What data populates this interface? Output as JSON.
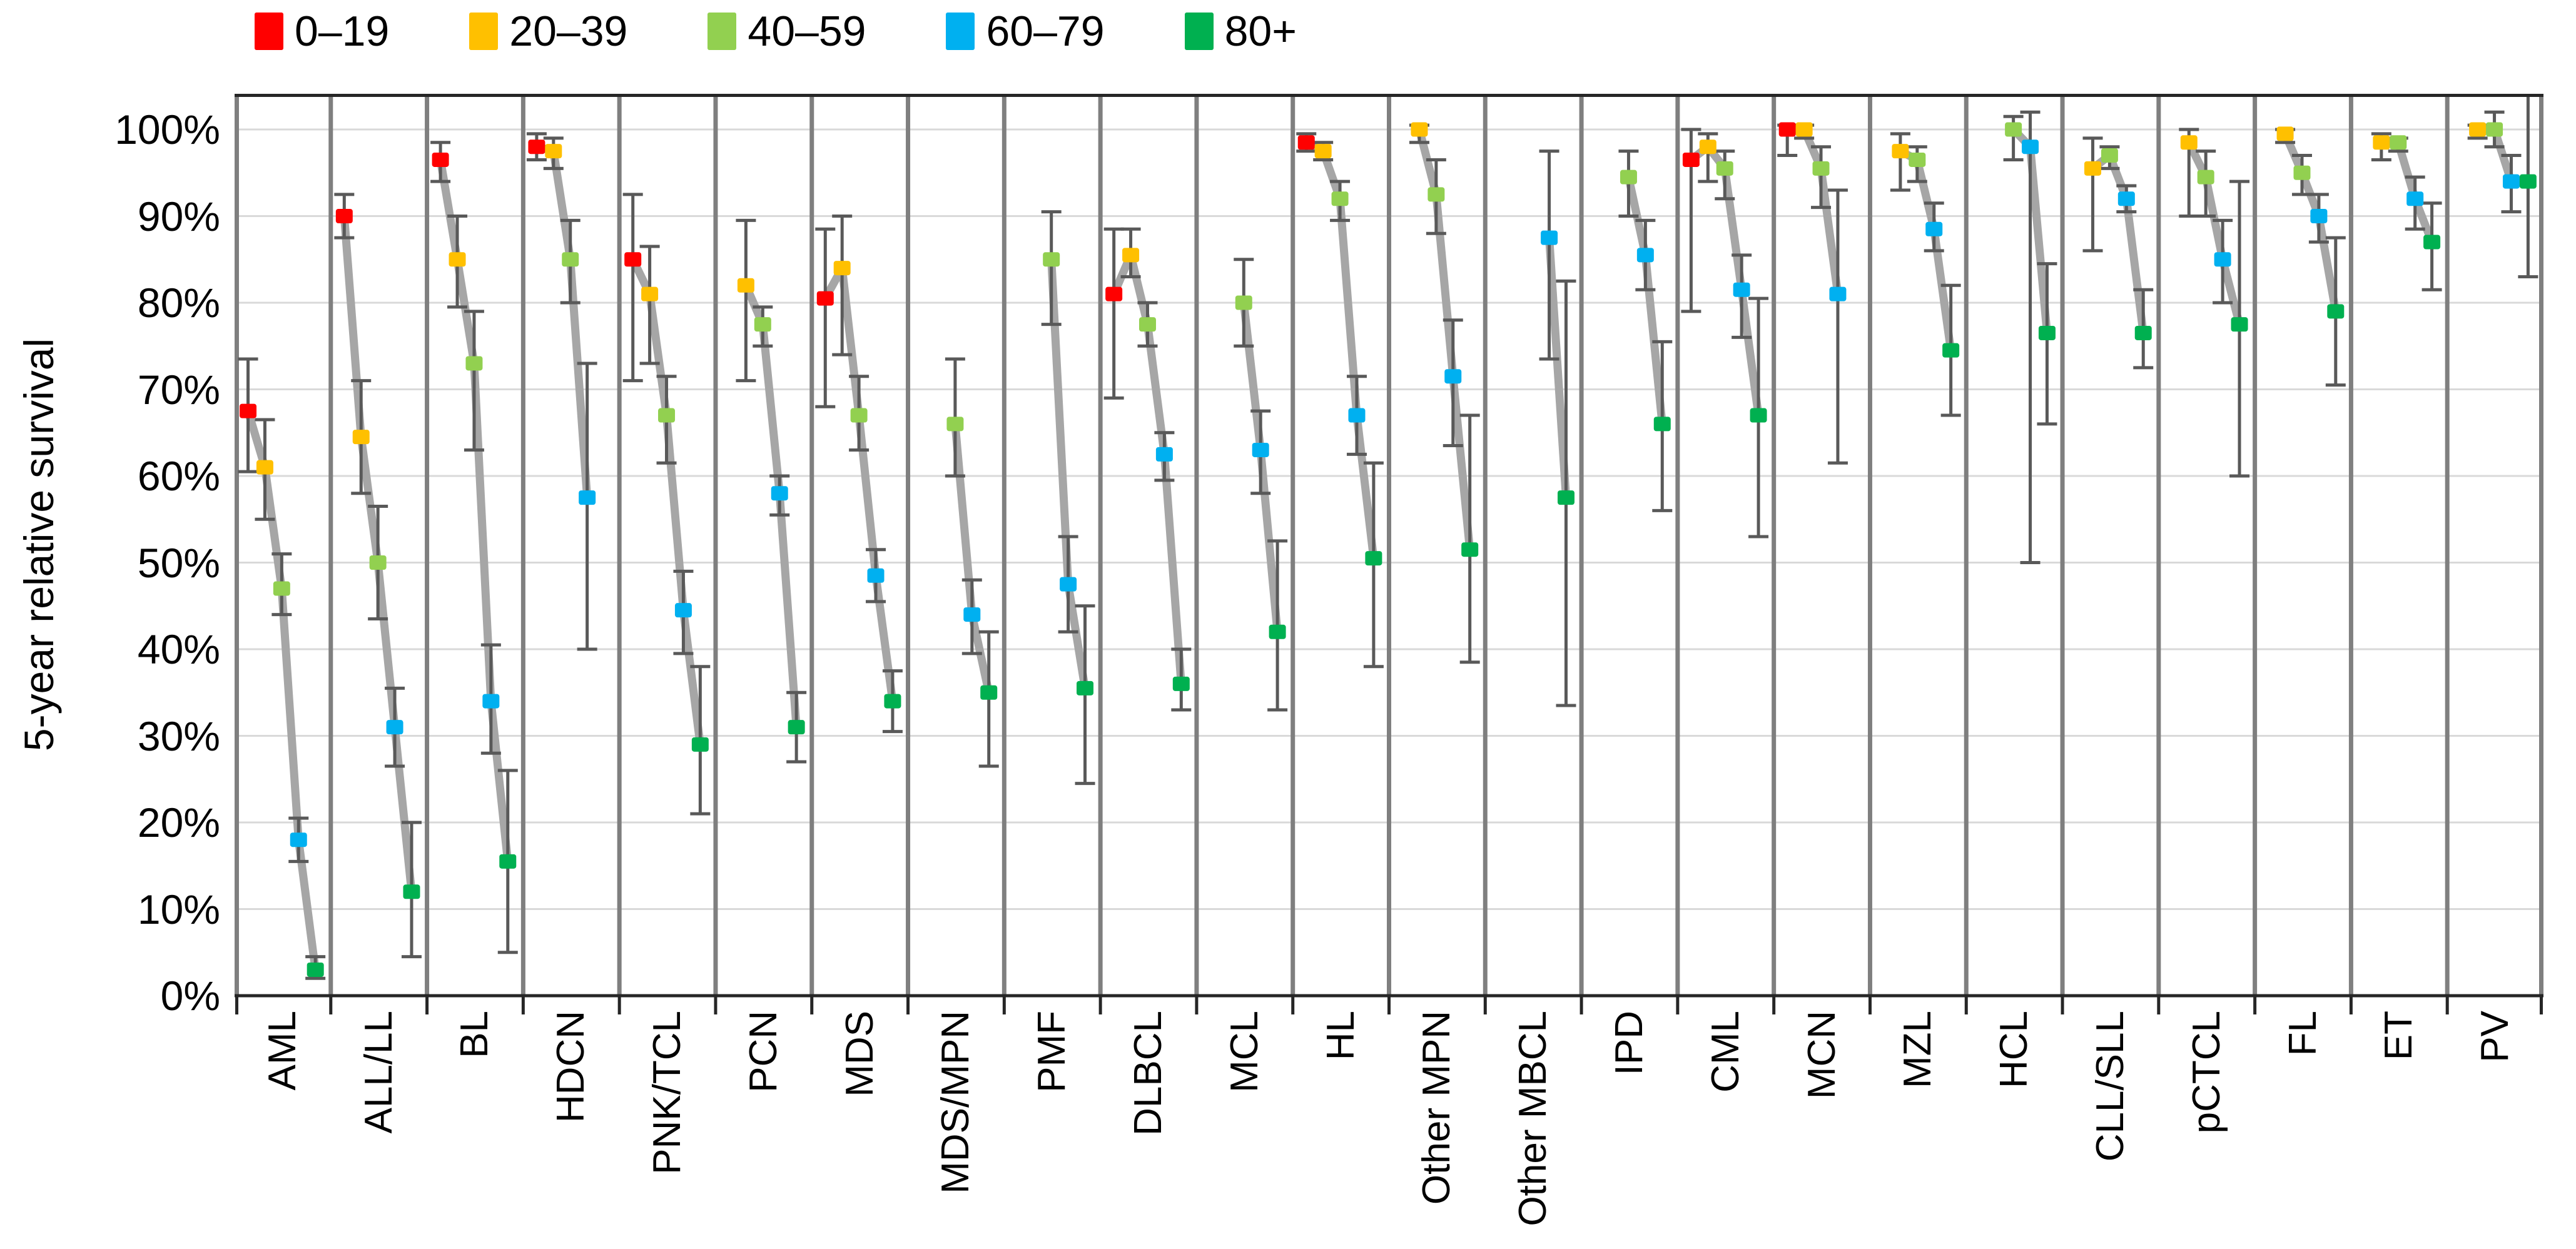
{
  "figure": {
    "kind": "survival-dot-plot"
  },
  "chart_data": {
    "type": "scatter",
    "title": "",
    "xlabel": "",
    "ylabel": "5-year relative survival",
    "ylim": [
      0,
      104
    ],
    "grid": true,
    "legend_position": "top",
    "yticks": [
      "0%",
      "10%",
      "20%",
      "30%",
      "40%",
      "50%",
      "60%",
      "70%",
      "80%",
      "90%",
      "100%"
    ],
    "unit": "%",
    "age_groups": [
      {
        "label": "0–19",
        "color": "#FF0000"
      },
      {
        "label": "20–39",
        "color": "#FFC000"
      },
      {
        "label": "40–59",
        "color": "#92D050"
      },
      {
        "label": "60–79",
        "color": "#00B0F0"
      },
      {
        "label": "80+",
        "color": "#00B050"
      }
    ],
    "categories": [
      {
        "label": "AML",
        "points": [
          {
            "group": "0–19",
            "value": 67.5,
            "ci": [
              60.5,
              73.5
            ]
          },
          {
            "group": "20–39",
            "value": 61,
            "ci": [
              55,
              66.5
            ]
          },
          {
            "group": "40–59",
            "value": 47,
            "ci": [
              44,
              51
            ]
          },
          {
            "group": "60–79",
            "value": 18,
            "ci": [
              15.5,
              20.5
            ]
          },
          {
            "group": "80+",
            "value": 3,
            "ci": [
              2,
              4.5
            ]
          }
        ]
      },
      {
        "label": "ALL/LL",
        "points": [
          {
            "group": "0–19",
            "value": 90,
            "ci": [
              87.5,
              92.5
            ]
          },
          {
            "group": "20–39",
            "value": 64.5,
            "ci": [
              58,
              71
            ]
          },
          {
            "group": "40–59",
            "value": 50,
            "ci": [
              43.5,
              56.5
            ]
          },
          {
            "group": "60–79",
            "value": 31,
            "ci": [
              26.5,
              35.5
            ]
          },
          {
            "group": "80+",
            "value": 12,
            "ci": [
              4.5,
              20
            ]
          }
        ]
      },
      {
        "label": "BL",
        "points": [
          {
            "group": "0–19",
            "value": 96.5,
            "ci": [
              94,
              98.5
            ]
          },
          {
            "group": "20–39",
            "value": 85,
            "ci": [
              79.5,
              90
            ]
          },
          {
            "group": "40–59",
            "value": 73,
            "ci": [
              63,
              79
            ]
          },
          {
            "group": "60–79",
            "value": 34,
            "ci": [
              28,
              40.5
            ]
          },
          {
            "group": "80+",
            "value": 15.5,
            "ci": [
              5,
              26
            ]
          }
        ]
      },
      {
        "label": "HDCN",
        "points": [
          {
            "group": "0–19",
            "value": 98,
            "ci": [
              96.5,
              99.5
            ]
          },
          {
            "group": "20–39",
            "value": 97.5,
            "ci": [
              95.5,
              99
            ]
          },
          {
            "group": "40–59",
            "value": 85,
            "ci": [
              80,
              89.5
            ]
          },
          {
            "group": "60–79",
            "value": 57.5,
            "ci": [
              40,
              73
            ]
          }
        ]
      },
      {
        "label": "PNK/TCL",
        "points": [
          {
            "group": "0–19",
            "value": 85,
            "ci": [
              71,
              92.5
            ]
          },
          {
            "group": "20–39",
            "value": 81,
            "ci": [
              73,
              86.5
            ]
          },
          {
            "group": "40–59",
            "value": 67,
            "ci": [
              61.5,
              71.5
            ]
          },
          {
            "group": "60–79",
            "value": 44.5,
            "ci": [
              39.5,
              49
            ]
          },
          {
            "group": "80+",
            "value": 29,
            "ci": [
              21,
              38
            ]
          }
        ]
      },
      {
        "label": "PCN",
        "points": [
          {
            "group": "20–39",
            "value": 82,
            "ci": [
              71,
              89.5
            ]
          },
          {
            "group": "40–59",
            "value": 77.5,
            "ci": [
              75,
              79.5
            ]
          },
          {
            "group": "60–79",
            "value": 58,
            "ci": [
              55.5,
              60
            ]
          },
          {
            "group": "80+",
            "value": 31,
            "ci": [
              27,
              35
            ]
          }
        ]
      },
      {
        "label": "MDS",
        "points": [
          {
            "group": "0–19",
            "value": 80.5,
            "ci": [
              68,
              88.5
            ]
          },
          {
            "group": "20–39",
            "value": 84,
            "ci": [
              74,
              90
            ]
          },
          {
            "group": "40–59",
            "value": 67,
            "ci": [
              63,
              71.5
            ]
          },
          {
            "group": "60–79",
            "value": 48.5,
            "ci": [
              45.5,
              51.5
            ]
          },
          {
            "group": "80+",
            "value": 34,
            "ci": [
              30.5,
              37.5
            ]
          }
        ]
      },
      {
        "label": "MDS/MPN",
        "points": [
          {
            "group": "40–59",
            "value": 66,
            "ci": [
              60,
              73.5
            ]
          },
          {
            "group": "60–79",
            "value": 44,
            "ci": [
              39.5,
              48
            ]
          },
          {
            "group": "80+",
            "value": 35,
            "ci": [
              26.5,
              42
            ]
          }
        ]
      },
      {
        "label": "PMF",
        "points": [
          {
            "group": "40–59",
            "value": 85,
            "ci": [
              77.5,
              90.5
            ]
          },
          {
            "group": "60–79",
            "value": 47.5,
            "ci": [
              42,
              53
            ]
          },
          {
            "group": "80+",
            "value": 35.5,
            "ci": [
              24.5,
              45
            ]
          }
        ]
      },
      {
        "label": "DLBCL",
        "points": [
          {
            "group": "0–19",
            "value": 81,
            "ci": [
              69,
              88.5
            ]
          },
          {
            "group": "20–39",
            "value": 85.5,
            "ci": [
              83,
              88.5
            ]
          },
          {
            "group": "40–59",
            "value": 77.5,
            "ci": [
              75,
              80
            ]
          },
          {
            "group": "60–79",
            "value": 62.5,
            "ci": [
              59.5,
              65
            ]
          },
          {
            "group": "80+",
            "value": 36,
            "ci": [
              33,
              40
            ]
          }
        ]
      },
      {
        "label": "MCL",
        "points": [
          {
            "group": "40–59",
            "value": 80,
            "ci": [
              75,
              85
            ]
          },
          {
            "group": "60–79",
            "value": 63,
            "ci": [
              58,
              67.5
            ]
          },
          {
            "group": "80+",
            "value": 42,
            "ci": [
              33,
              52.5
            ]
          }
        ]
      },
      {
        "label": "HL",
        "points": [
          {
            "group": "0–19",
            "value": 98.5,
            "ci": [
              97.5,
              99.5
            ]
          },
          {
            "group": "20–39",
            "value": 97.5,
            "ci": [
              96.5,
              98.5
            ]
          },
          {
            "group": "40–59",
            "value": 92,
            "ci": [
              89.5,
              94
            ]
          },
          {
            "group": "60–79",
            "value": 67,
            "ci": [
              62.5,
              71.5
            ]
          },
          {
            "group": "80+",
            "value": 50.5,
            "ci": [
              38,
              61.5
            ]
          }
        ]
      },
      {
        "label": "Other MPN",
        "points": [
          {
            "group": "20–39",
            "value": 100,
            "ci": [
              98.5,
              100.5
            ]
          },
          {
            "group": "40–59",
            "value": 92.5,
            "ci": [
              88,
              96.5
            ]
          },
          {
            "group": "60–79",
            "value": 71.5,
            "ci": [
              63.5,
              78
            ]
          },
          {
            "group": "80+",
            "value": 51.5,
            "ci": [
              38.5,
              67
            ]
          }
        ]
      },
      {
        "label": "Other MBCL",
        "points": [
          {
            "group": "60–79",
            "value": 87.5,
            "ci": [
              73.5,
              97.5
            ]
          },
          {
            "group": "80+",
            "value": 57.5,
            "ci": [
              33.5,
              82.5
            ]
          }
        ]
      },
      {
        "label": "IPD",
        "points": [
          {
            "group": "40–59",
            "value": 94.5,
            "ci": [
              90,
              97.5
            ]
          },
          {
            "group": "60–79",
            "value": 85.5,
            "ci": [
              81.5,
              89.5
            ]
          },
          {
            "group": "80+",
            "value": 66,
            "ci": [
              56,
              75.5
            ]
          }
        ]
      },
      {
        "label": "CML",
        "points": [
          {
            "group": "0–19",
            "value": 96.5,
            "ci": [
              79,
              100
            ]
          },
          {
            "group": "20–39",
            "value": 98,
            "ci": [
              94,
              99.5
            ]
          },
          {
            "group": "40–59",
            "value": 95.5,
            "ci": [
              92,
              97.5
            ]
          },
          {
            "group": "60–79",
            "value": 81.5,
            "ci": [
              76,
              85.5
            ]
          },
          {
            "group": "80+",
            "value": 67,
            "ci": [
              53,
              80.5
            ]
          }
        ]
      },
      {
        "label": "MCN",
        "points": [
          {
            "group": "0–19",
            "value": 100,
            "ci": [
              97,
              100.5
            ]
          },
          {
            "group": "20–39",
            "value": 100,
            "ci": [
              99,
              100.5
            ]
          },
          {
            "group": "40–59",
            "value": 95.5,
            "ci": [
              91,
              98
            ]
          },
          {
            "group": "60–79",
            "value": 81,
            "ci": [
              61.5,
              93
            ]
          }
        ]
      },
      {
        "label": "MZL",
        "points": [
          {
            "group": "20–39",
            "value": 97.5,
            "ci": [
              93,
              99.5
            ]
          },
          {
            "group": "40–59",
            "value": 96.5,
            "ci": [
              94,
              98
            ]
          },
          {
            "group": "60–79",
            "value": 88.5,
            "ci": [
              86,
              91.5
            ]
          },
          {
            "group": "80+",
            "value": 74.5,
            "ci": [
              67,
              82
            ]
          }
        ]
      },
      {
        "label": "HCL",
        "points": [
          {
            "group": "40–59",
            "value": 100,
            "ci": [
              96.5,
              101.5
            ]
          },
          {
            "group": "60–79",
            "value": 98,
            "ci": [
              50,
              102
            ]
          },
          {
            "group": "80+",
            "value": 76.5,
            "ci": [
              66,
              84.5
            ]
          }
        ]
      },
      {
        "label": "CLL/SLL",
        "points": [
          {
            "group": "20–39",
            "value": 95.5,
            "ci": [
              86,
              99
            ]
          },
          {
            "group": "40–59",
            "value": 97,
            "ci": [
              95.5,
              98
            ]
          },
          {
            "group": "60–79",
            "value": 92,
            "ci": [
              90.5,
              93.5
            ]
          },
          {
            "group": "80+",
            "value": 76.5,
            "ci": [
              72.5,
              81.5
            ]
          }
        ]
      },
      {
        "label": "pCTCL",
        "points": [
          {
            "group": "20–39",
            "value": 98.5,
            "ci": [
              90,
              100
            ]
          },
          {
            "group": "40–59",
            "value": 94.5,
            "ci": [
              90,
              97.5
            ]
          },
          {
            "group": "60–79",
            "value": 85,
            "ci": [
              80,
              89.5
            ]
          },
          {
            "group": "80+",
            "value": 77.5,
            "ci": [
              60,
              94
            ]
          }
        ]
      },
      {
        "label": "FL",
        "points": [
          {
            "group": "20–39",
            "value": 99.5,
            "ci": [
              98.5,
              100
            ]
          },
          {
            "group": "40–59",
            "value": 95,
            "ci": [
              92.5,
              97
            ]
          },
          {
            "group": "60–79",
            "value": 90,
            "ci": [
              87,
              92.5
            ]
          },
          {
            "group": "80+",
            "value": 79,
            "ci": [
              70.5,
              87.5
            ]
          }
        ]
      },
      {
        "label": "ET",
        "points": [
          {
            "group": "20–39",
            "value": 98.5,
            "ci": [
              96.5,
              99.5
            ]
          },
          {
            "group": "40–59",
            "value": 98.5,
            "ci": [
              97.5,
              99
            ]
          },
          {
            "group": "60–79",
            "value": 92,
            "ci": [
              88.5,
              94.5
            ]
          },
          {
            "group": "80+",
            "value": 87,
            "ci": [
              81.5,
              91.5
            ]
          }
        ]
      },
      {
        "label": "PV",
        "points": [
          {
            "group": "20–39",
            "value": 100,
            "ci": [
              99,
              100.5
            ]
          },
          {
            "group": "40–59",
            "value": 100,
            "ci": [
              98,
              102
            ]
          },
          {
            "group": "60–79",
            "value": 94,
            "ci": [
              90.5,
              97
            ]
          },
          {
            "group": "80+",
            "value": 94,
            "ci": [
              83,
              104
            ]
          }
        ]
      }
    ],
    "style_colors": {
      "connector_line": "#A6A6A6",
      "error_bar": "#595959",
      "panel_separator": "#7F7F7F",
      "gridline": "#D9D9D9",
      "axis_line": "#262626"
    }
  }
}
